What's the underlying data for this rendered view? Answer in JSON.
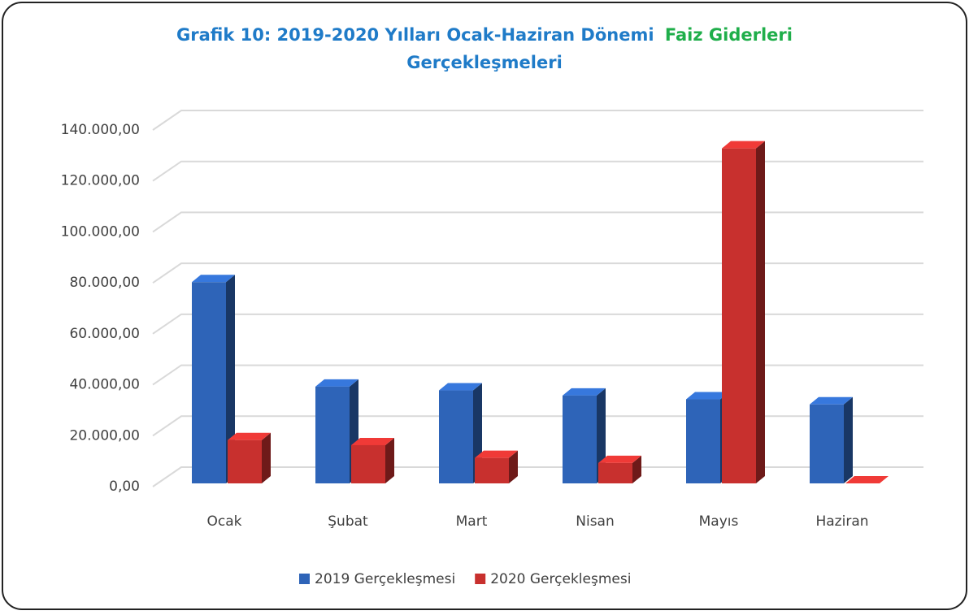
{
  "chart_data": {
    "type": "bar3d",
    "title": [
      {
        "text": "Grafik 10: 2019-2020 Yılları Ocak-Haziran Dönemi",
        "color": "#1f7bc8"
      },
      {
        "text": "Faiz Giderleri",
        "color": "#1fae4a"
      },
      {
        "text": "Gerçekleşmeleri",
        "color": "#1f7bc8"
      }
    ],
    "categories": [
      "Ocak",
      "Şubat",
      "Mart",
      "Nisan",
      "Mayıs",
      "Haziran"
    ],
    "series": [
      {
        "name": "2019 Gerçekleşmesi",
        "color": "#2e64b8",
        "values": [
          79000,
          38000,
          36500,
          34500,
          33000,
          31000
        ]
      },
      {
        "name": "2020 Gerçekleşmesi",
        "color": "#c8302e",
        "values": [
          17000,
          15000,
          10000,
          8000,
          131500,
          0
        ]
      }
    ],
    "ylim": [
      0,
      140000
    ],
    "yticks": [
      {
        "value": 0,
        "label": "0,00"
      },
      {
        "value": 20000,
        "label": "20.000,00"
      },
      {
        "value": 40000,
        "label": "40.000,00"
      },
      {
        "value": 60000,
        "label": "60.000,00"
      },
      {
        "value": 80000,
        "label": "80.000,00"
      },
      {
        "value": 100000,
        "label": "100.000,00"
      },
      {
        "value": 120000,
        "label": "120.000,00"
      },
      {
        "value": 140000,
        "label": "140.000,00"
      }
    ],
    "grid": true,
    "legend": "bottom"
  }
}
